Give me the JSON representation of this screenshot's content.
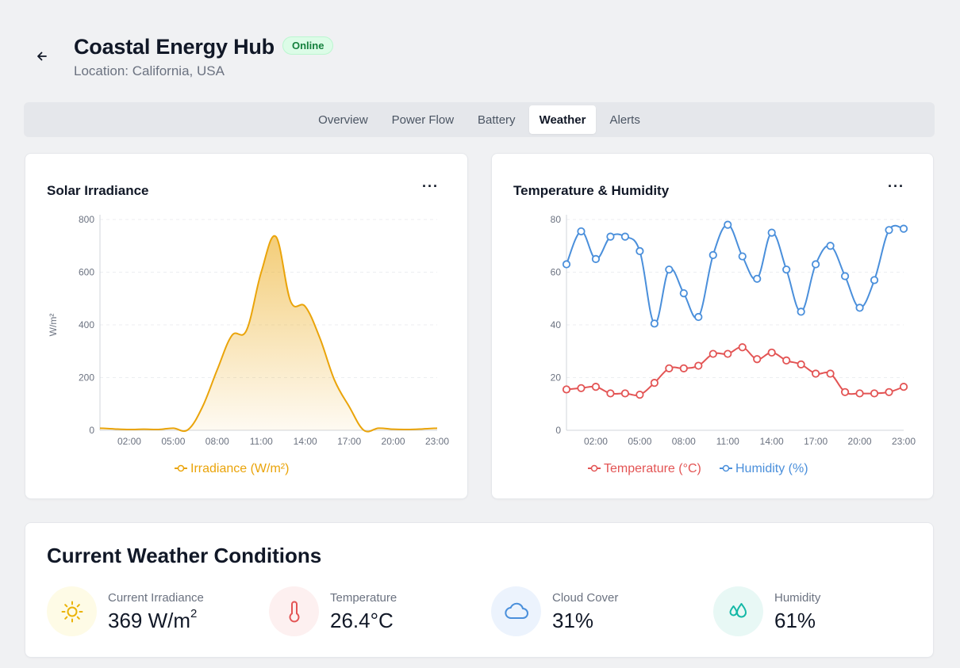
{
  "header": {
    "title": "Coastal Energy Hub",
    "status": "Online",
    "location": "Location: California, USA"
  },
  "tabs": [
    {
      "label": "Overview",
      "active": false
    },
    {
      "label": "Power Flow",
      "active": false
    },
    {
      "label": "Battery",
      "active": false
    },
    {
      "label": "Weather",
      "active": true
    },
    {
      "label": "Alerts",
      "active": false
    }
  ],
  "colors": {
    "irradiance": "#eaa40a",
    "temperature": "#e35454",
    "humidity": "#4a8fdb",
    "online": "#15803d"
  },
  "irradiance_card": {
    "title": "Solar Irradiance",
    "more_icon": "more-horizontal-icon"
  },
  "temp_card": {
    "title": "Temperature & Humidity",
    "more_icon": "more-horizontal-icon"
  },
  "chart_data": [
    {
      "type": "area",
      "title": "Solar Irradiance",
      "ylabel": "W/m²",
      "ylim": [
        0,
        800
      ],
      "yticks": [
        "0",
        "200",
        "400",
        "600",
        "800"
      ],
      "xtick_labels": [
        "02:00",
        "05:00",
        "08:00",
        "11:00",
        "14:00",
        "17:00",
        "20:00",
        "23:00"
      ],
      "x": [
        "00:00",
        "01:00",
        "02:00",
        "03:00",
        "04:00",
        "05:00",
        "06:00",
        "07:00",
        "08:00",
        "09:00",
        "10:00",
        "11:00",
        "12:00",
        "13:00",
        "14:00",
        "15:00",
        "16:00",
        "17:00",
        "18:00",
        "19:00",
        "20:00",
        "21:00",
        "22:00",
        "23:00"
      ],
      "series": [
        {
          "name": "Irradiance (W/m²)",
          "values": [
            8,
            5,
            3,
            4,
            3,
            8,
            2,
            90,
            230,
            360,
            380,
            600,
            735,
            490,
            470,
            350,
            190,
            90,
            0,
            8,
            4,
            3,
            5,
            8
          ]
        }
      ],
      "legend": "bottom",
      "grid": true
    },
    {
      "type": "line",
      "title": "Temperature & Humidity",
      "ylim": [
        0,
        80
      ],
      "yticks": [
        "0",
        "20",
        "40",
        "60",
        "80"
      ],
      "xtick_labels": [
        "02:00",
        "05:00",
        "08:00",
        "11:00",
        "14:00",
        "17:00",
        "20:00",
        "23:00"
      ],
      "x": [
        "00:00",
        "01:00",
        "02:00",
        "03:00",
        "04:00",
        "05:00",
        "06:00",
        "07:00",
        "08:00",
        "09:00",
        "10:00",
        "11:00",
        "12:00",
        "13:00",
        "14:00",
        "15:00",
        "16:00",
        "17:00",
        "18:00",
        "19:00",
        "20:00",
        "21:00",
        "22:00",
        "23:00"
      ],
      "series": [
        {
          "name": "Temperature (°C)",
          "values": [
            15.5,
            16,
            16.5,
            14,
            14,
            13.5,
            18,
            23.5,
            23.5,
            24.5,
            29,
            29,
            31.5,
            27,
            29.5,
            26.5,
            25,
            21.5,
            21.5,
            14.5,
            14,
            14,
            14.5,
            16.5
          ]
        },
        {
          "name": "Humidity (%)",
          "values": [
            63,
            75.5,
            65,
            73.5,
            73.5,
            68,
            40.5,
            61,
            52,
            43,
            66.5,
            78,
            66,
            57.5,
            75,
            61,
            45,
            63,
            70,
            58.5,
            46.5,
            57,
            76,
            76.5
          ]
        }
      ],
      "legend": "bottom",
      "grid": true
    }
  ],
  "weather": {
    "title": "Current Weather Conditions",
    "metrics": [
      {
        "label": "Current Irradiance",
        "value": "369 W/m",
        "sup": "2",
        "icon": "sun-icon",
        "bg": "#fefbe6",
        "color": "#eab308"
      },
      {
        "label": "Temperature",
        "value": "26.4°C",
        "sup": "",
        "icon": "thermometer-icon",
        "bg": "#fdf0f0",
        "color": "#e35454"
      },
      {
        "label": "Cloud Cover",
        "value": "31%",
        "sup": "",
        "icon": "cloud-icon",
        "bg": "#ecf3fd",
        "color": "#4a8fdb"
      },
      {
        "label": "Humidity",
        "value": "61%",
        "sup": "",
        "icon": "droplets-icon",
        "bg": "#e8f8f5",
        "color": "#14b8a6"
      }
    ]
  }
}
